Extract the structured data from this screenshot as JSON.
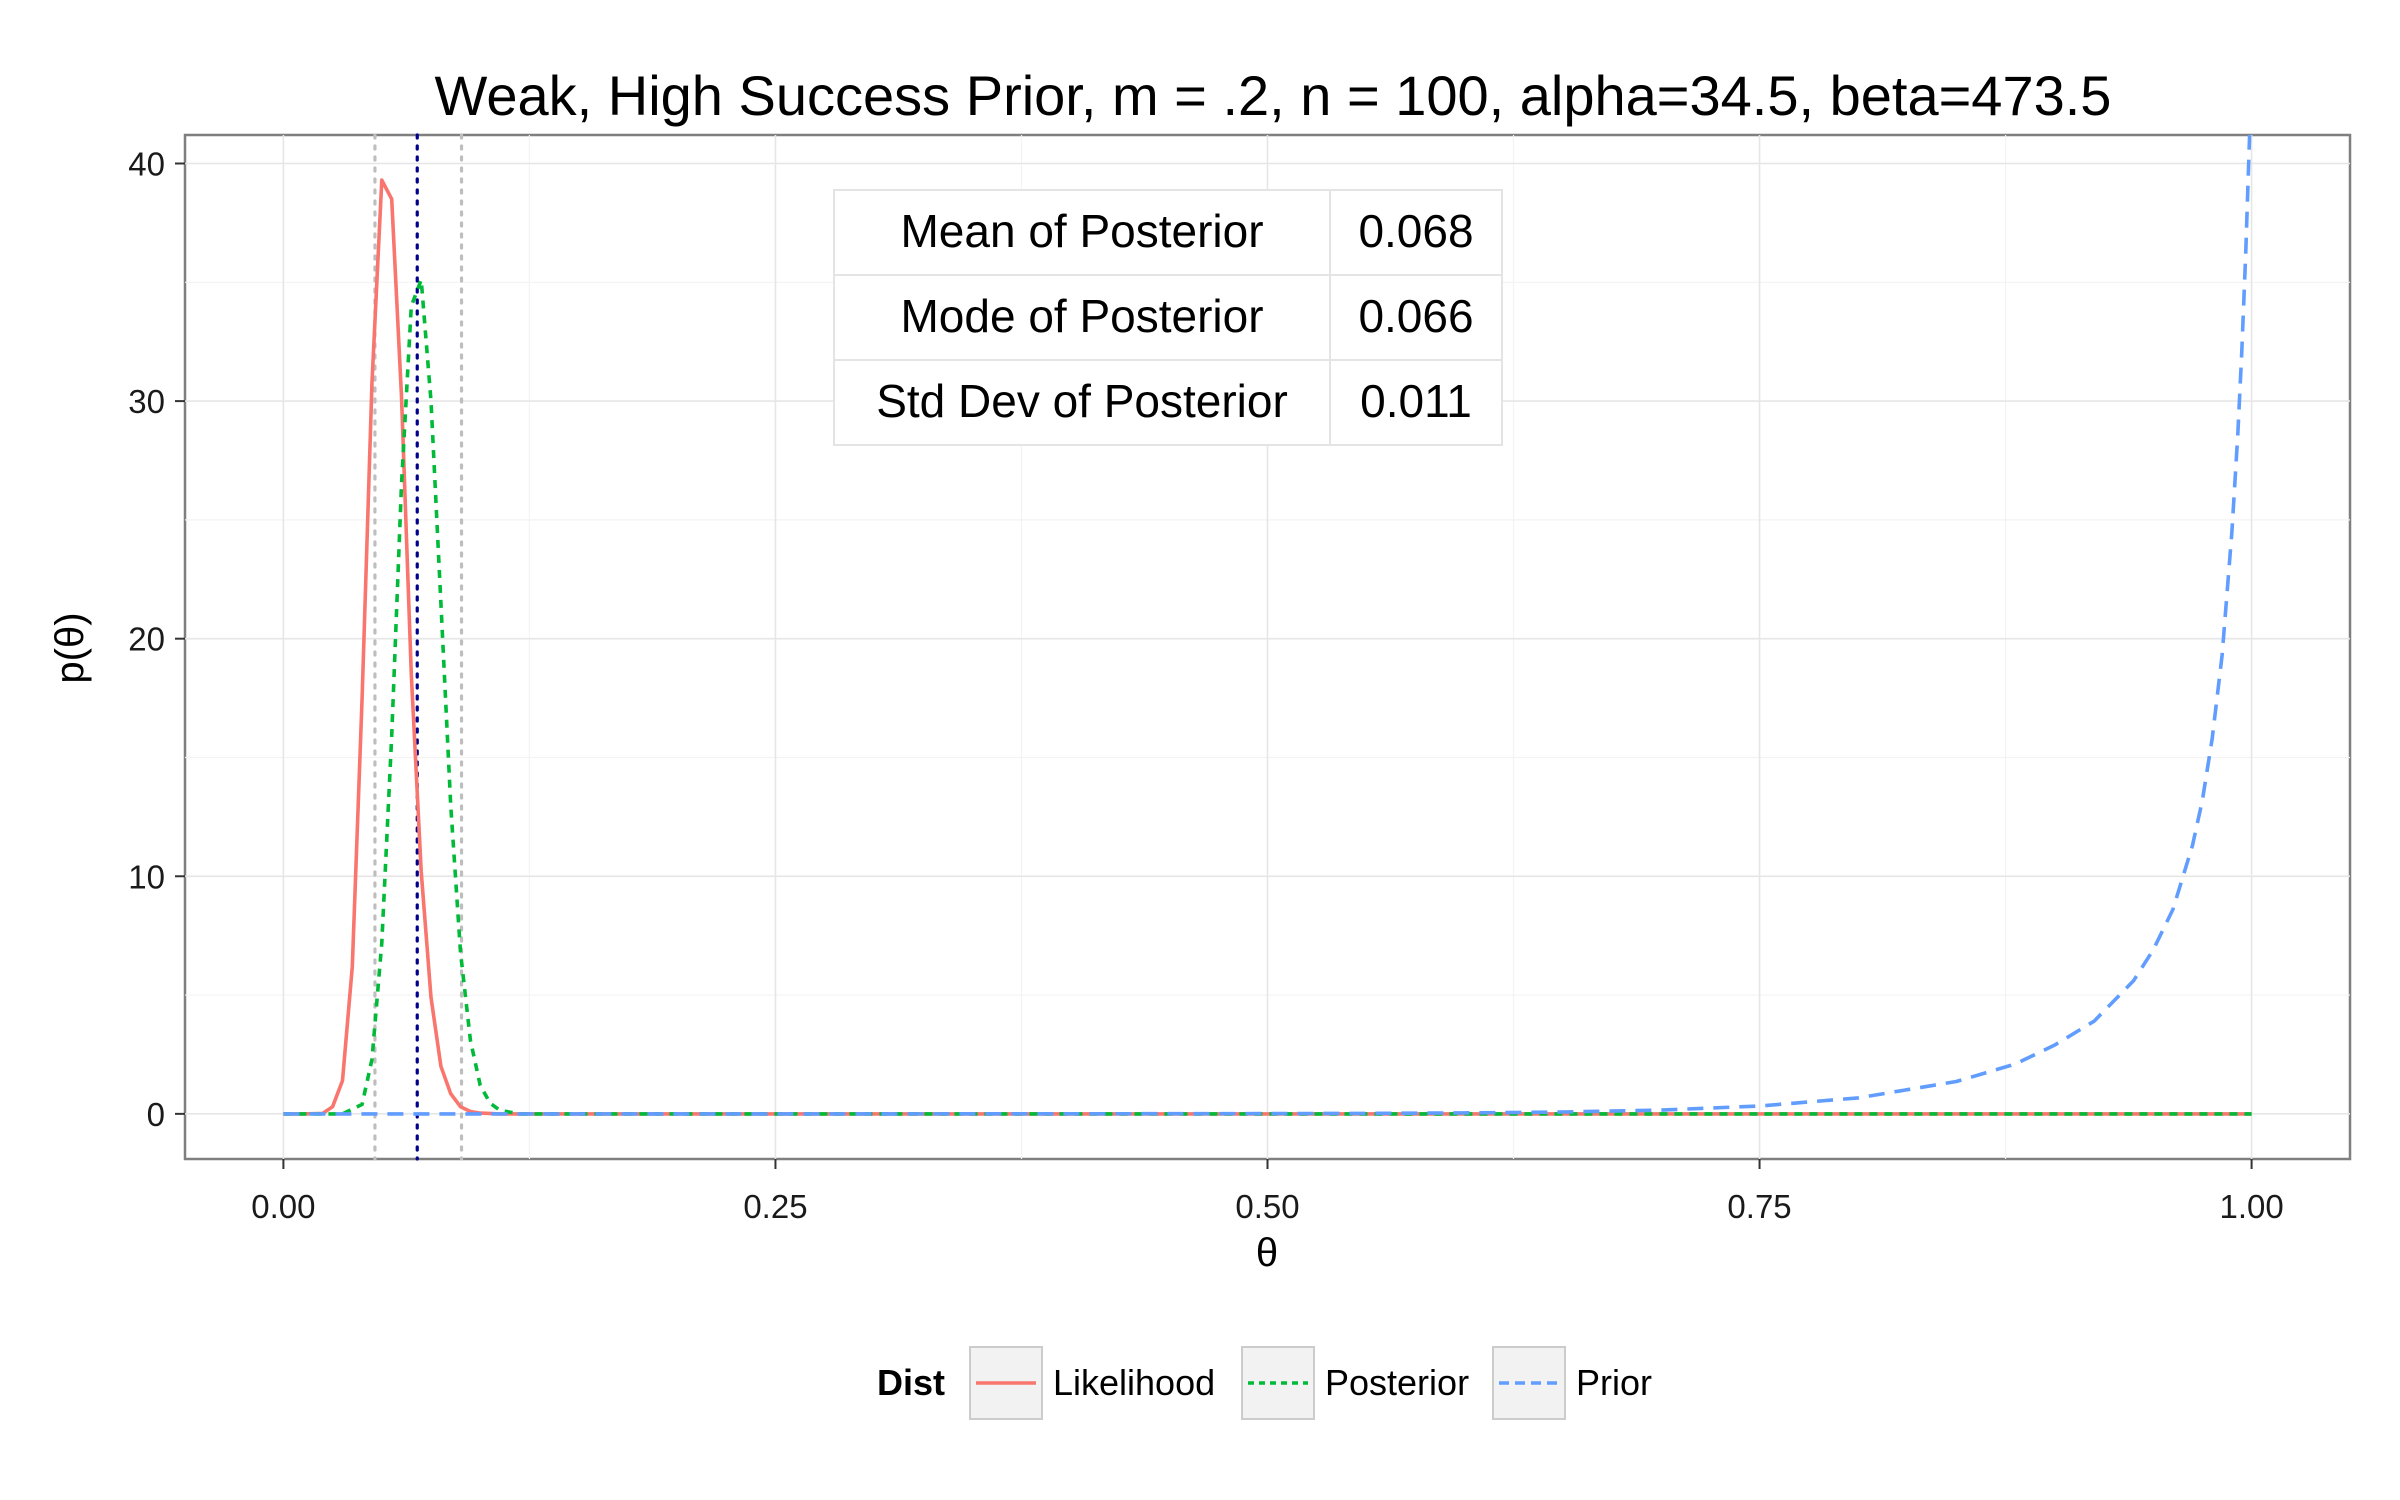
{
  "chart_data": {
    "type": "line",
    "title": "Weak, High Success Prior, m = .2, n = 100, alpha=34.5, beta=473.5",
    "xlabel": "θ",
    "ylabel": "p(θ)",
    "xlim": [
      -0.05,
      1.05
    ],
    "ylim": [
      -1.9,
      41.2
    ],
    "x_ticks": [
      0,
      0.25,
      0.5,
      0.75,
      1
    ],
    "x_tick_labels": [
      "0.00",
      "0.25",
      "0.50",
      "0.75",
      "1.00"
    ],
    "y_ticks": [
      0,
      10,
      20,
      30,
      40
    ],
    "y_tick_labels": [
      "0",
      "10",
      "20",
      "30",
      "40"
    ],
    "grid": true,
    "legend": {
      "title": "Dist",
      "position": "bottom",
      "entries": [
        "Likelihood",
        "Posterior",
        "Prior"
      ]
    },
    "colors": {
      "Likelihood": "#F8766D",
      "Posterior": "#00BA38",
      "Prior": "#619CFF",
      "mean_line": "#00008B",
      "interval_line": "#BEBEBE"
    },
    "series": [
      {
        "name": "Likelihood",
        "x": [
          0,
          0.01,
          0.02,
          0.025,
          0.03,
          0.035,
          0.04,
          0.045,
          0.05,
          0.055,
          0.06,
          0.065,
          0.07,
          0.075,
          0.08,
          0.085,
          0.09,
          0.095,
          0.1,
          0.11,
          0.12,
          1.0
        ],
        "y": [
          0,
          0,
          0.02,
          0.3,
          1.4,
          6.2,
          17.5,
          30.8,
          39.3,
          38.5,
          30.2,
          18.5,
          10.2,
          4.9,
          2.0,
          0.85,
          0.3,
          0.1,
          0.03,
          0,
          0,
          0
        ]
      },
      {
        "name": "Posterior",
        "x": [
          0,
          0.03,
          0.04,
          0.045,
          0.05,
          0.055,
          0.06,
          0.065,
          0.07,
          0.075,
          0.08,
          0.085,
          0.09,
          0.095,
          0.1,
          0.105,
          0.11,
          0.12,
          1.0
        ],
        "y": [
          0,
          0,
          0.4,
          2.3,
          7.2,
          15.9,
          26.5,
          34.0,
          35.1,
          30.0,
          21.5,
          13.0,
          6.8,
          3.1,
          1.2,
          0.45,
          0.15,
          0,
          0
        ]
      },
      {
        "name": "Prior",
        "x": [
          0,
          0.1,
          0.2,
          0.3,
          0.4,
          0.5,
          0.55,
          0.6,
          0.65,
          0.7,
          0.75,
          0.8,
          0.85,
          0.88,
          0.9,
          0.92,
          0.94,
          0.95,
          0.96,
          0.97,
          0.975,
          0.98,
          0.985,
          0.99,
          0.993,
          0.995,
          0.997,
          0.999
        ],
        "y": [
          0,
          0,
          0,
          0,
          0.002,
          0.01,
          0.02,
          0.04,
          0.08,
          0.16,
          0.33,
          0.67,
          1.36,
          2.1,
          2.9,
          3.9,
          5.6,
          6.9,
          8.6,
          11.3,
          13.2,
          15.8,
          19.3,
          24.5,
          28.6,
          32.0,
          36.2,
          41.2
        ]
      }
    ],
    "reference_lines": [
      {
        "type": "vline",
        "x": 0.068,
        "style": "dotted",
        "role": "mean"
      },
      {
        "type": "vline",
        "x": 0.0465,
        "style": "dotted",
        "role": "interval"
      },
      {
        "type": "vline",
        "x": 0.0905,
        "style": "dotted",
        "role": "interval"
      }
    ],
    "annotation_table": {
      "rows": [
        {
          "label": "Mean of Posterior",
          "value": "0.068"
        },
        {
          "label": "Mode of Posterior",
          "value": "0.066"
        },
        {
          "label": "Std Dev of Posterior",
          "value": "0.011"
        }
      ]
    }
  }
}
